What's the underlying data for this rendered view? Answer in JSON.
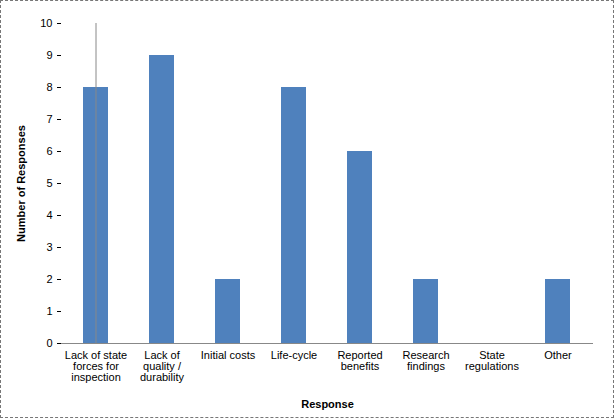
{
  "chart_data": {
    "type": "bar",
    "categories": [
      "Lack of state forces for inspection",
      "Lack of quality / durability",
      "Initial costs",
      "Life-cycle",
      "Reported benefits",
      "Research findings",
      "State regulations",
      "Other"
    ],
    "values": [
      8,
      9,
      2,
      8,
      6,
      2,
      0,
      2
    ],
    "color": "#4f81bd",
    "x_label": "Response",
    "y_label": "Number of Responses",
    "ylim": [
      0,
      10
    ],
    "yticks": [
      0,
      1,
      2,
      3,
      4,
      5,
      6,
      7,
      8,
      9,
      10
    ],
    "grid": false
  }
}
